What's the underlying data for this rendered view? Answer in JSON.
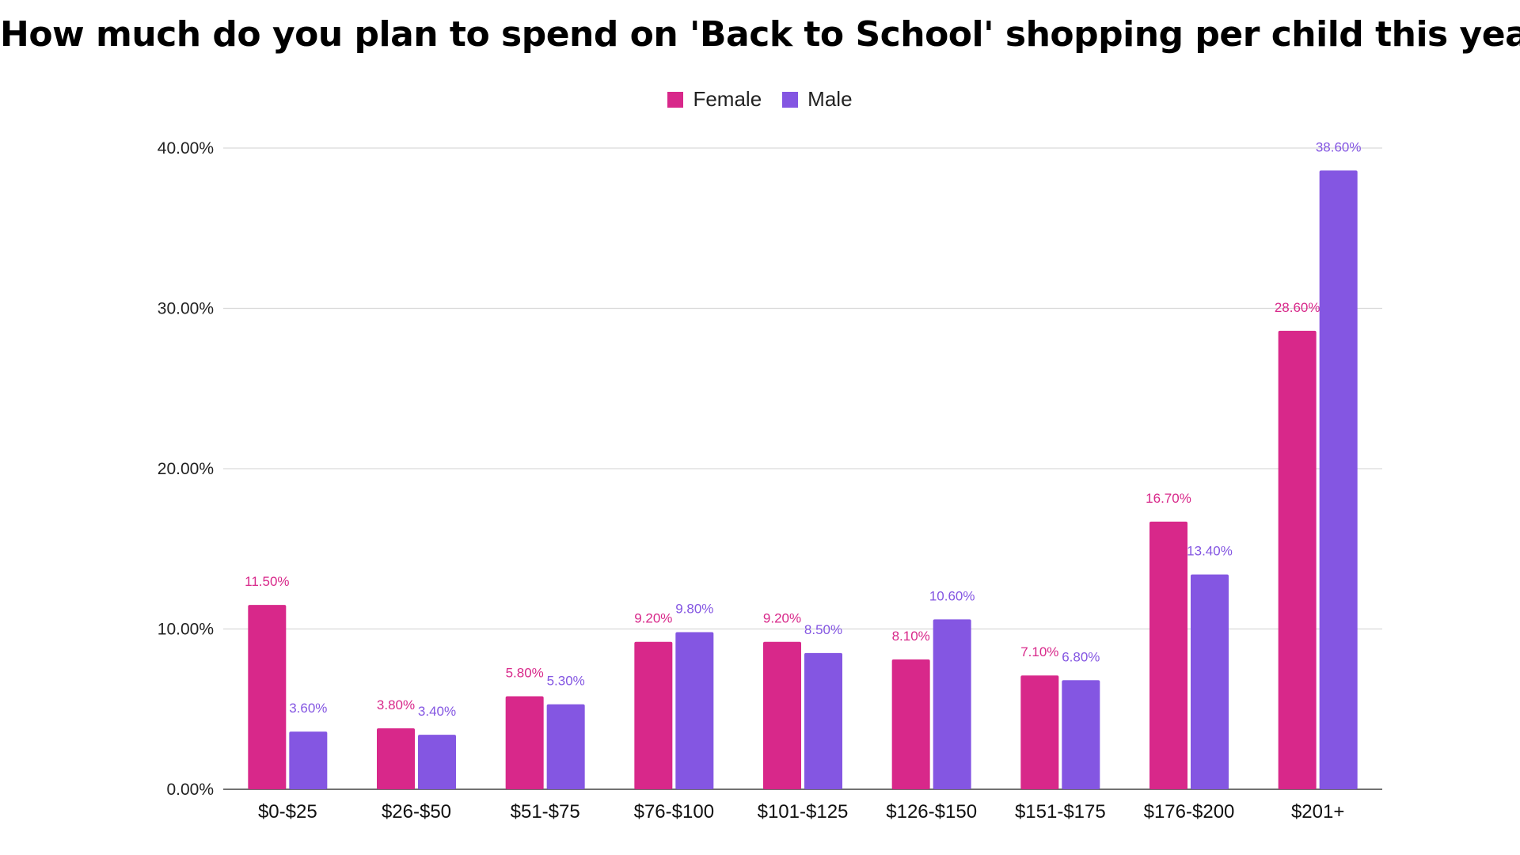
{
  "colors": {
    "female": "#D8288A",
    "male": "#8456E2",
    "grid": "#D9D9D9",
    "axis": "#444444"
  },
  "chart_data": {
    "type": "bar",
    "title": "How much do you plan to spend on 'Back to School' shopping per child this year?",
    "legend": {
      "placement": "top-center",
      "entries": [
        "Female",
        "Male"
      ]
    },
    "categories": [
      "$0-$25",
      "$26-$50",
      "$51-$75",
      "$76-$100",
      "$101-$125",
      "$126-$150",
      "$151-$175",
      "$176-$200",
      "$201+"
    ],
    "series": [
      {
        "name": "Female",
        "values": [
          11.5,
          3.8,
          5.8,
          9.2,
          9.2,
          8.1,
          7.1,
          16.7,
          28.6
        ],
        "labels": [
          "11.50%",
          "3.80%",
          "5.80%",
          "9.20%",
          "9.20%",
          "8.10%",
          "7.10%",
          "16.70%",
          "28.60%"
        ]
      },
      {
        "name": "Male",
        "values": [
          3.6,
          3.4,
          5.3,
          9.8,
          8.5,
          10.6,
          6.8,
          13.4,
          38.6
        ],
        "labels": [
          "3.60%",
          "3.40%",
          "5.30%",
          "9.80%",
          "8.50%",
          "10.60%",
          "6.80%",
          "13.40%",
          "38.60%"
        ]
      }
    ],
    "y_ticks": [
      0,
      10,
      20,
      30,
      40
    ],
    "y_tick_labels": [
      "0.00%",
      "10.00%",
      "20.00%",
      "30.00%",
      "40.00%"
    ],
    "ylim": [
      0,
      40
    ],
    "grid": true
  }
}
